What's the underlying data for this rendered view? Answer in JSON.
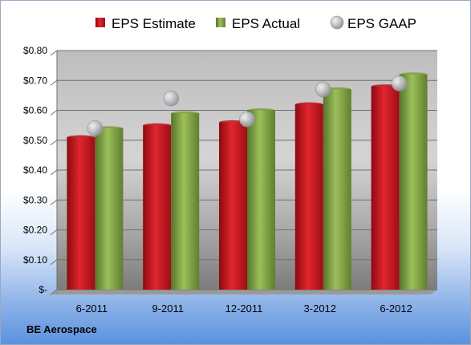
{
  "chart_data": {
    "type": "bar",
    "categories": [
      "6-2011",
      "9-2011",
      "12-2011",
      "3-2012",
      "6-2012"
    ],
    "series": [
      {
        "name": "EPS Estimate",
        "values": [
          0.51,
          0.55,
          0.56,
          0.62,
          0.68
        ],
        "color": "#c0111b"
      },
      {
        "name": "EPS Actual",
        "values": [
          0.54,
          0.59,
          0.6,
          0.67,
          0.72
        ],
        "color": "#7a9c3a"
      }
    ],
    "markers": {
      "name": "EPS GAAP",
      "values": [
        0.54,
        0.64,
        0.57,
        0.67,
        0.69
      ],
      "color": "#b8bcc2"
    },
    "ylim": [
      0,
      0.8
    ],
    "yticks": [
      0,
      0.1,
      0.2,
      0.3,
      0.4,
      0.5,
      0.6,
      0.7,
      0.8
    ],
    "ytick_labels": [
      "$-",
      "$0.10",
      "$0.20",
      "$0.30",
      "$0.40",
      "$0.50",
      "$0.60",
      "$0.70",
      "$0.80"
    ],
    "legend": "top",
    "grid": true
  },
  "company": "BE Aerospace"
}
